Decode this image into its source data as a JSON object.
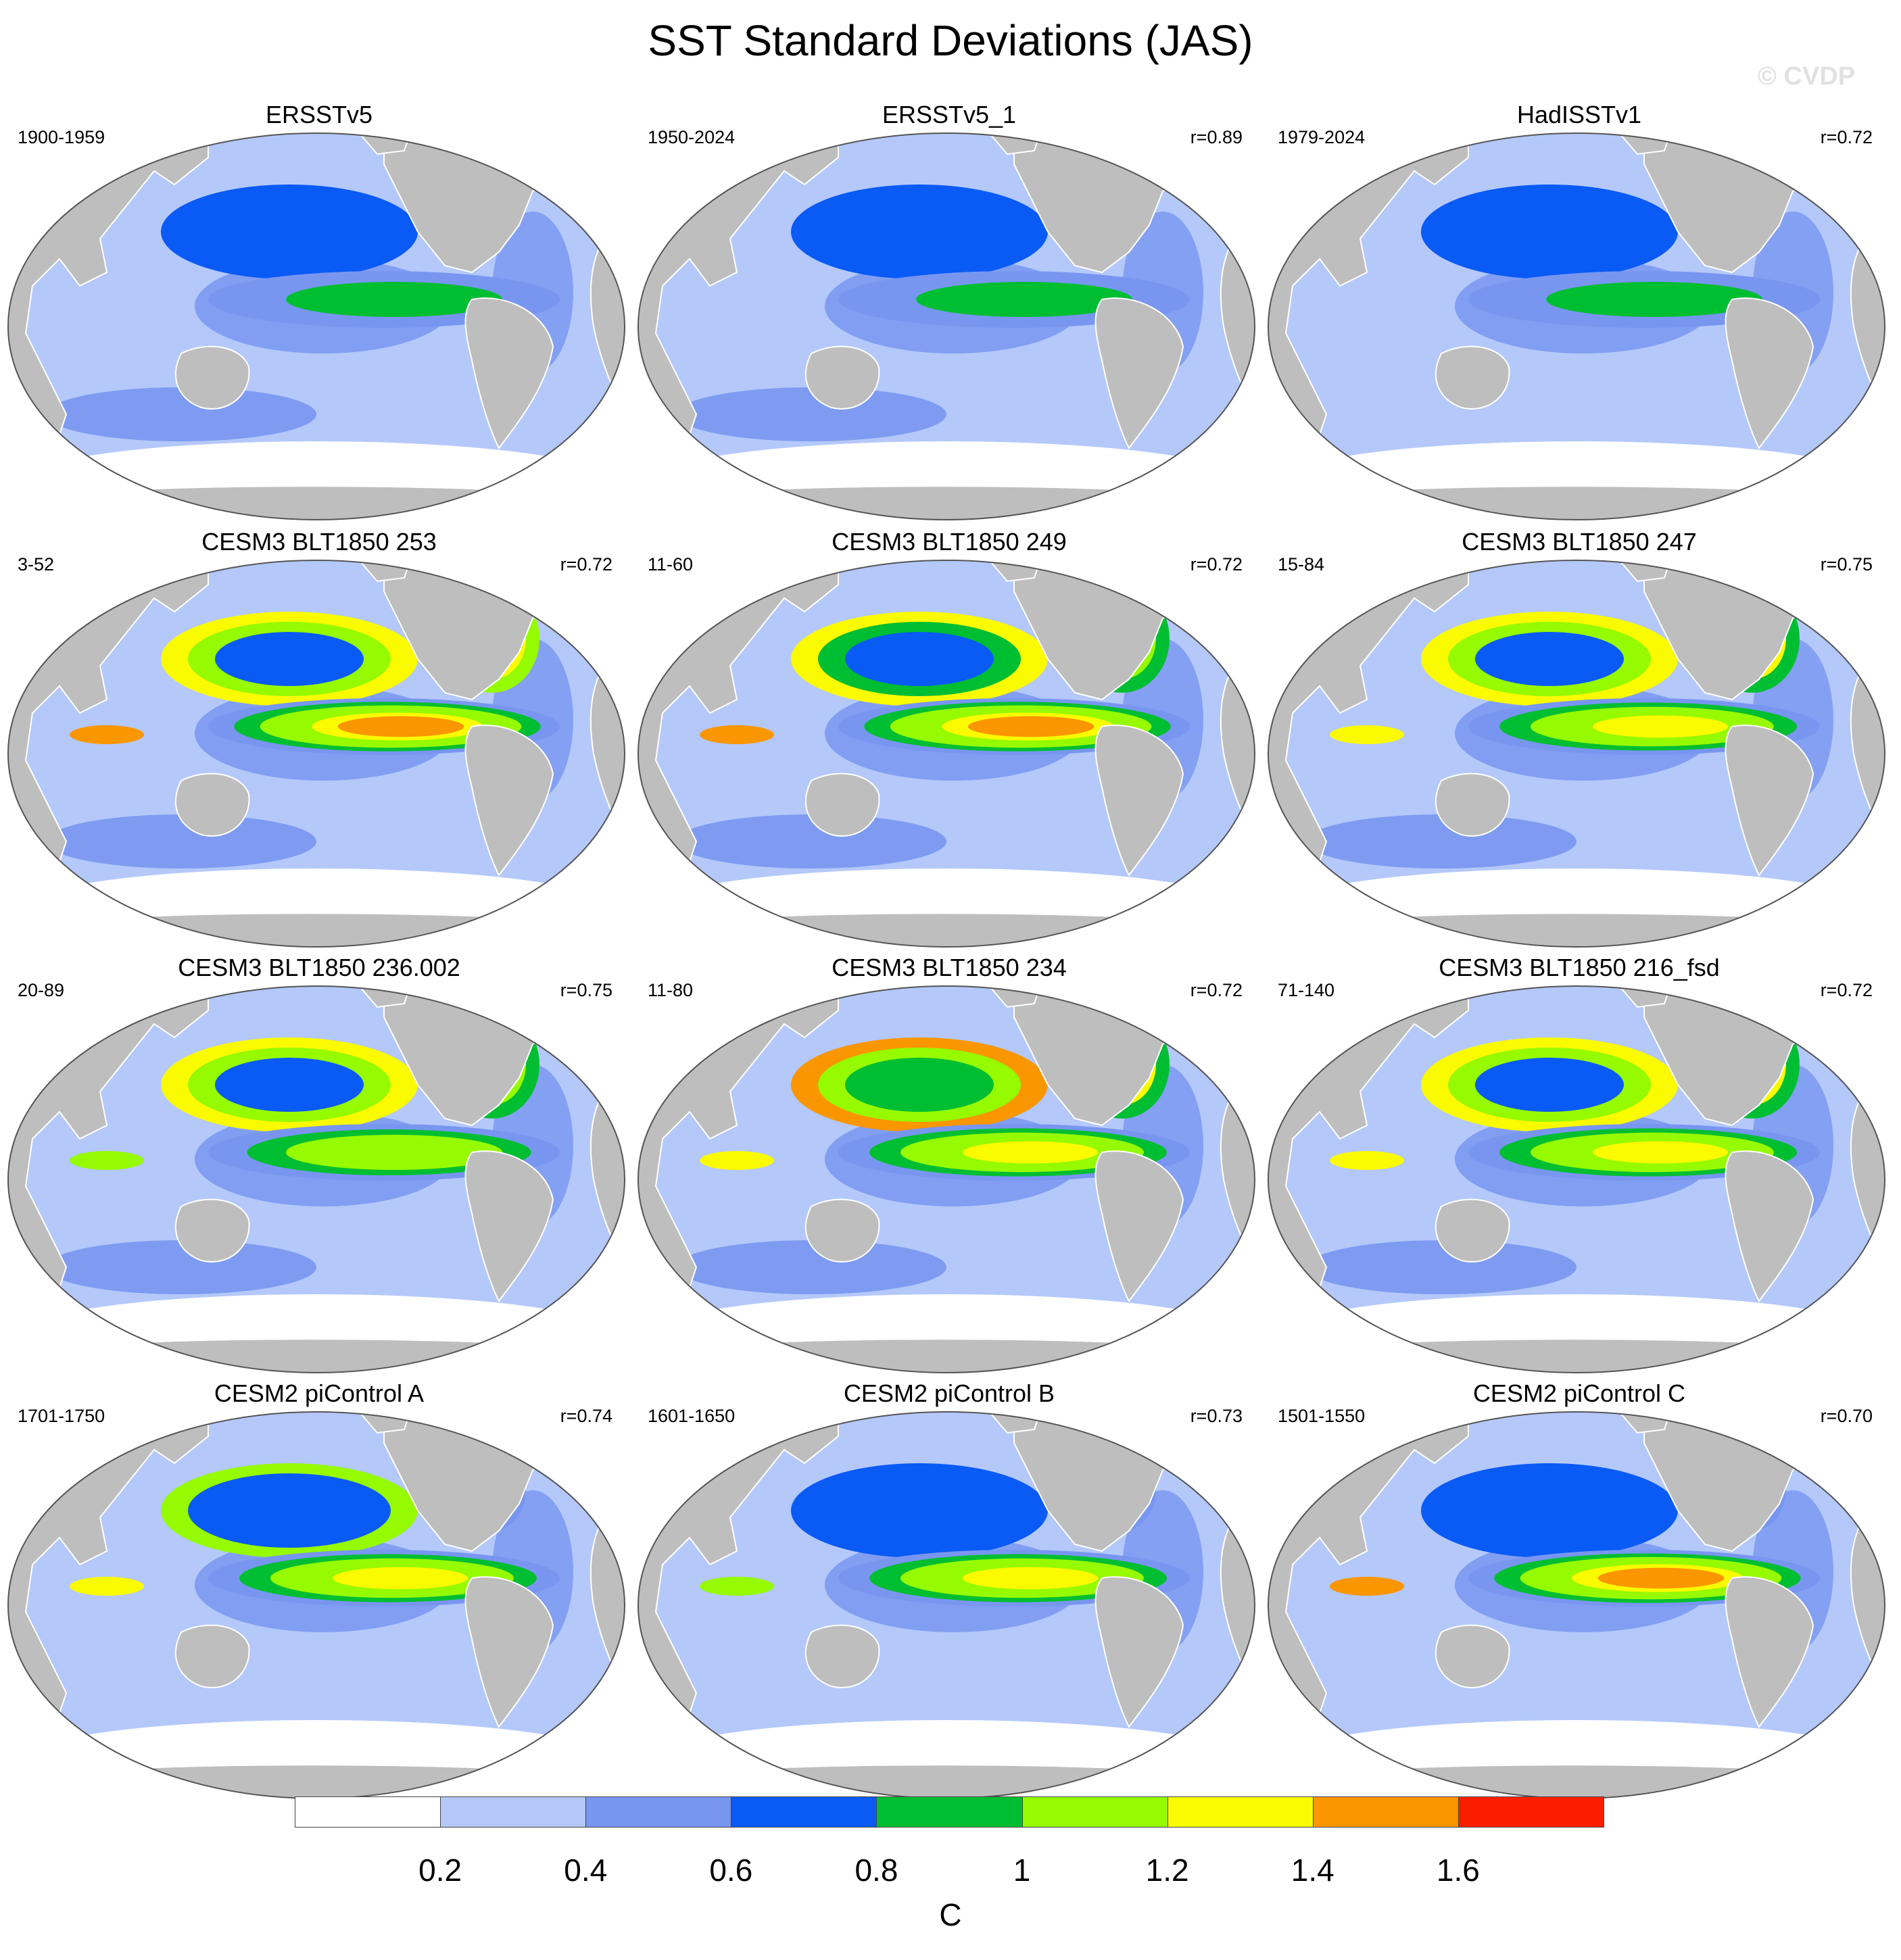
{
  "title": "SST Standard Deviations (JAS)",
  "watermark": "© CVDP",
  "panels": [
    {
      "title": "ERSSTv5",
      "period": "1900-1959",
      "corr": "",
      "nino": 0.85,
      "npac": 0.75,
      "natl": 0.7,
      "s_oc": 0.5
    },
    {
      "title": "ERSSTv5_1",
      "period": "1950-2024",
      "corr": "r=0.89",
      "nino": 0.95,
      "npac": 0.75,
      "natl": 0.65,
      "s_oc": 0.4
    },
    {
      "title": "HadISSTv1",
      "period": "1979-2024",
      "corr": "r=0.72",
      "nino": 0.9,
      "npac": 0.65,
      "natl": 0.6,
      "s_oc": 0.3
    },
    {
      "title": "CESM3 BLT1850 253",
      "period": "3-52",
      "corr": "r=0.72",
      "nino": 1.7,
      "npac": 1.35,
      "natl": 1.5,
      "s_oc": 0.5
    },
    {
      "title": "CESM3 BLT1850 249",
      "period": "11-60",
      "corr": "r=0.72",
      "nino": 1.6,
      "npac": 1.25,
      "natl": 1.4,
      "s_oc": 0.5
    },
    {
      "title": "CESM3 BLT1850 247",
      "period": "15-84",
      "corr": "r=0.75",
      "nino": 1.55,
      "npac": 1.3,
      "natl": 1.45,
      "s_oc": 0.5
    },
    {
      "title": "CESM3 BLT1850 236.002",
      "period": "20-89",
      "corr": "r=0.75",
      "nino": 1.25,
      "npac": 1.3,
      "natl": 1.4,
      "s_oc": 0.5
    },
    {
      "title": "CESM3 BLT1850 234",
      "period": "11-80",
      "corr": "r=0.72",
      "nino": 1.45,
      "npac": 1.45,
      "natl": 1.45,
      "s_oc": 0.5
    },
    {
      "title": "CESM3 BLT1850 216_fsd",
      "period": "71-140",
      "corr": "r=0.72",
      "nino": 1.45,
      "npac": 1.4,
      "natl": 1.45,
      "s_oc": 0.5
    },
    {
      "title": "CESM2 piControl A",
      "period": "1701-1750",
      "corr": "r=0.74",
      "nino": 1.45,
      "npac": 1.05,
      "natl": 0.75,
      "s_oc": 0.35
    },
    {
      "title": "CESM2 piControl B",
      "period": "1601-1650",
      "corr": "r=0.73",
      "nino": 1.4,
      "npac": 0.75,
      "natl": 0.75,
      "s_oc": 0.35
    },
    {
      "title": "CESM2 piControl C",
      "period": "1501-1550",
      "corr": "r=0.70",
      "nino": 1.65,
      "npac": 0.75,
      "natl": 0.75,
      "s_oc": 0.35
    }
  ],
  "colorbar": {
    "units": "C",
    "labels": [
      "0.2",
      "0.4",
      "0.6",
      "0.8",
      "1",
      "1.2",
      "1.4",
      "1.6"
    ],
    "colors": [
      "#ffffff",
      "#b4c8fa",
      "#7896f0",
      "#0a5af5",
      "#00be32",
      "#96fa00",
      "#fafa00",
      "#fa9600",
      "#fa1e00"
    ]
  },
  "land_color": "#bebebe"
}
